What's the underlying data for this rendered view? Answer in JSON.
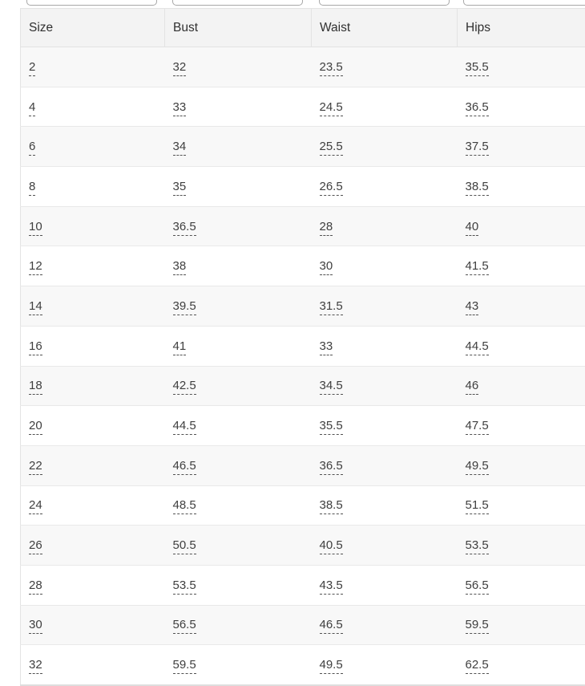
{
  "size_chart": {
    "filters": [
      {
        "name": "size",
        "value": "",
        "placeholder": ""
      },
      {
        "name": "bust",
        "value": "",
        "placeholder": ""
      },
      {
        "name": "waist",
        "value": "",
        "placeholder": ""
      },
      {
        "name": "hips",
        "value": "",
        "placeholder": ""
      }
    ],
    "columns": [
      "Size",
      "Bust",
      "Waist",
      "Hips"
    ],
    "rows": [
      [
        "2",
        "32",
        "23.5",
        "35.5"
      ],
      [
        "4",
        "33",
        "24.5",
        "36.5"
      ],
      [
        "6",
        "34",
        "25.5",
        "37.5"
      ],
      [
        "8",
        "35",
        "26.5",
        "38.5"
      ],
      [
        "10",
        "36.5",
        "28",
        "40"
      ],
      [
        "12",
        "38",
        "30",
        "41.5"
      ],
      [
        "14",
        "39.5",
        "31.5",
        "43"
      ],
      [
        "16",
        "41",
        "33",
        "44.5"
      ],
      [
        "18",
        "42.5",
        "34.5",
        "46"
      ],
      [
        "20",
        "44.5",
        "35.5",
        "47.5"
      ],
      [
        "22",
        "46.5",
        "36.5",
        "49.5"
      ],
      [
        "24",
        "48.5",
        "38.5",
        "51.5"
      ],
      [
        "26",
        "50.5",
        "40.5",
        "53.5"
      ],
      [
        "28",
        "53.5",
        "43.5",
        "56.5"
      ],
      [
        "30",
        "56.5",
        "46.5",
        "59.5"
      ],
      [
        "32",
        "59.5",
        "49.5",
        "62.5"
      ]
    ]
  },
  "colors": {
    "header_bg": "#f3f3f3",
    "stripe_bg": "#f8f8f8",
    "row_border": "#e9e9e9",
    "table_border": "#e3e3e3",
    "text": "#3f3f3f",
    "dashed_underline": "#525252",
    "input_border": "#a8a8a8"
  }
}
